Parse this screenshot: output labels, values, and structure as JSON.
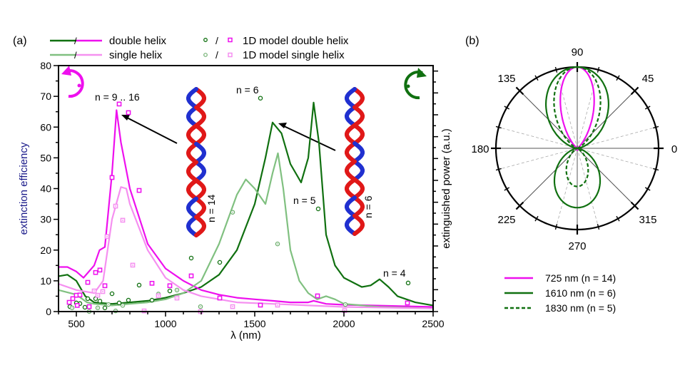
{
  "chart_data": [
    {
      "type": "line",
      "panel_label": "(a)",
      "xlabel": "λ (nm)",
      "ylabel": "extinction efficiency",
      "ylabel_right": "extinguished power (a.u.)",
      "xlim": [
        400,
        2500
      ],
      "ylim": [
        0,
        80
      ],
      "xticks": [
        500,
        1000,
        1500,
        2000,
        2500
      ],
      "yticks": [
        0,
        10,
        20,
        30,
        40,
        50,
        60,
        70,
        80
      ],
      "legend": {
        "placement": "top",
        "entries": [
          {
            "label": "double helix",
            "slash": "/"
          },
          {
            "label": "single helix",
            "slash": "/"
          },
          {
            "label": "1D model double helix",
            "slash": "/"
          },
          {
            "label": "1D model single helix",
            "slash": "/"
          }
        ]
      },
      "annotations": [
        "n = 9 .. 16",
        "n = 6",
        "n = 5",
        "n = 4",
        "n = 14",
        "n = 6"
      ],
      "series": [
        {
          "name": "double helix (right-handed)",
          "color": "#107010",
          "x": [
            400,
            450,
            500,
            550,
            600,
            700,
            800,
            900,
            1000,
            1100,
            1200,
            1300,
            1400,
            1500,
            1560,
            1600,
            1650,
            1700,
            1760,
            1800,
            1830,
            1860,
            1900,
            1950,
            2000,
            2100,
            2150,
            2200,
            2250,
            2300,
            2400,
            2500
          ],
          "y": [
            11.5,
            12,
            10,
            5,
            3,
            2.5,
            3,
            3.5,
            4.5,
            6,
            8,
            12,
            20,
            35,
            50,
            61.5,
            58,
            48,
            42,
            50,
            68,
            55,
            25,
            15,
            11,
            8,
            8.5,
            10.5,
            8,
            5,
            3,
            2
          ]
        },
        {
          "name": "double helix (left-handed)",
          "color": "#ee10ee",
          "x": [
            400,
            450,
            500,
            540,
            600,
            630,
            660,
            700,
            725,
            750,
            800,
            900,
            1000,
            1100,
            1200,
            1300,
            1400,
            1500,
            1600,
            1700,
            1800,
            1830,
            1900,
            2000,
            2500
          ],
          "y": [
            14.5,
            14.5,
            13,
            11,
            15,
            20,
            21,
            45,
            65.5,
            55,
            40,
            22,
            14,
            10,
            7,
            5.5,
            4.5,
            4,
            3.5,
            3,
            3,
            3.5,
            2.5,
            2.2,
            1.5
          ]
        },
        {
          "name": "single helix (right-handed)",
          "color": "#80c080",
          "x": [
            400,
            500,
            560,
            600,
            700,
            800,
            900,
            1000,
            1100,
            1200,
            1300,
            1400,
            1450,
            1500,
            1560,
            1600,
            1630,
            1660,
            1700,
            1750,
            1800,
            1850,
            1900,
            1950,
            2000,
            2200,
            2500
          ],
          "y": [
            7,
            5.5,
            3,
            2.5,
            2,
            2.5,
            3,
            4,
            6,
            10,
            22,
            38,
            43,
            40,
            35,
            45,
            51.5,
            40,
            20,
            10,
            6,
            4,
            5,
            4,
            2.5,
            1.5,
            1
          ]
        },
        {
          "name": "single helix (left-handed)",
          "color": "#f590f0",
          "x": [
            400,
            500,
            600,
            650,
            700,
            750,
            780,
            800,
            900,
            1000,
            1100,
            1200,
            1400,
            1600,
            1800,
            2000,
            2500
          ],
          "y": [
            9,
            7,
            6,
            10,
            30,
            40.5,
            40,
            35,
            20,
            11,
            7,
            5,
            3,
            2.5,
            2,
            1.5,
            1
          ]
        }
      ],
      "scatter": [
        {
          "name": "1D model double helix (green)",
          "color": "#107010",
          "marker": "circle",
          "x": [
            1532,
            1856,
            2360,
            1144,
            1304,
            852,
            700,
            1024,
            608,
            632,
            792,
            740,
            924,
            660,
            564,
            500,
            520,
            548,
            464
          ],
          "y": [
            69.4,
            33.4,
            9.3,
            17.4,
            16,
            8.6,
            5.8,
            6.7,
            4.2,
            3.4,
            3.7,
            2.8,
            3.7,
            1.2,
            4.2,
            2.8,
            2.6,
            1.4,
            1.6
          ]
        },
        {
          "name": "1D model single helix (green)",
          "color": "#70b070",
          "marker": "circle-dot",
          "x": [
            1376,
            1628,
            2008,
            1196,
            1064,
            960,
            720,
            680,
            760,
            620,
            572,
            476
          ],
          "y": [
            32.3,
            22,
            2.3,
            1.6,
            7,
            5.7,
            0.2,
            2.3,
            2,
            1.2,
            0,
            1.2
          ]
        },
        {
          "name": "1D model double helix (magenta)",
          "color": "#ee10ee",
          "marker": "square",
          "x": [
            740,
            792,
            700,
            852,
            608,
            632,
            564,
            660,
            924,
            1024,
            1144,
            1304,
            500,
            520,
            480,
            460,
            572,
            505,
            1532,
            1852,
            2356
          ],
          "y": [
            67.5,
            64.7,
            43.6,
            39.4,
            12.7,
            13.5,
            9.5,
            8.4,
            9.2,
            8.4,
            11.6,
            4.4,
            5.3,
            5.4,
            4.2,
            3,
            1.6,
            2,
            2.1,
            5.1,
            2.8
          ]
        },
        {
          "name": "1D model single helix (magenta)",
          "color": "#f590f0",
          "marker": "square-dot",
          "x": [
            672,
            720,
            760,
            816,
            600,
            620,
            648,
            880,
            960,
            1064,
            1196,
            1376,
            1628,
            2004
          ],
          "y": [
            24.4,
            34.3,
            29.7,
            15.1,
            6.7,
            5.3,
            6.5,
            0.2,
            5.1,
            4.4,
            0,
            1.6,
            2.1,
            0.3
          ]
        }
      ]
    },
    {
      "type": "polar",
      "panel_label": "(b)",
      "angle_labels": [
        "90",
        "45",
        "0",
        "315",
        "270",
        "225",
        "180",
        "135"
      ],
      "series": [
        {
          "label": "725 nm (n = 14)",
          "color": "#ee10ee",
          "dash": false,
          "upper_lobe": 1.0,
          "lower_lobe": 0.02,
          "sharpness": 8
        },
        {
          "label": "1610 nm (n = 6)",
          "color": "#107010",
          "dash": false,
          "upper_lobe": 1.0,
          "lower_lobe": 0.73,
          "sharpness": 2
        },
        {
          "label": "1830 nm (n = 5)",
          "color": "#107010",
          "dash": true,
          "upper_lobe": 1.0,
          "lower_lobe": 0.47,
          "sharpness": 4
        }
      ]
    }
  ]
}
